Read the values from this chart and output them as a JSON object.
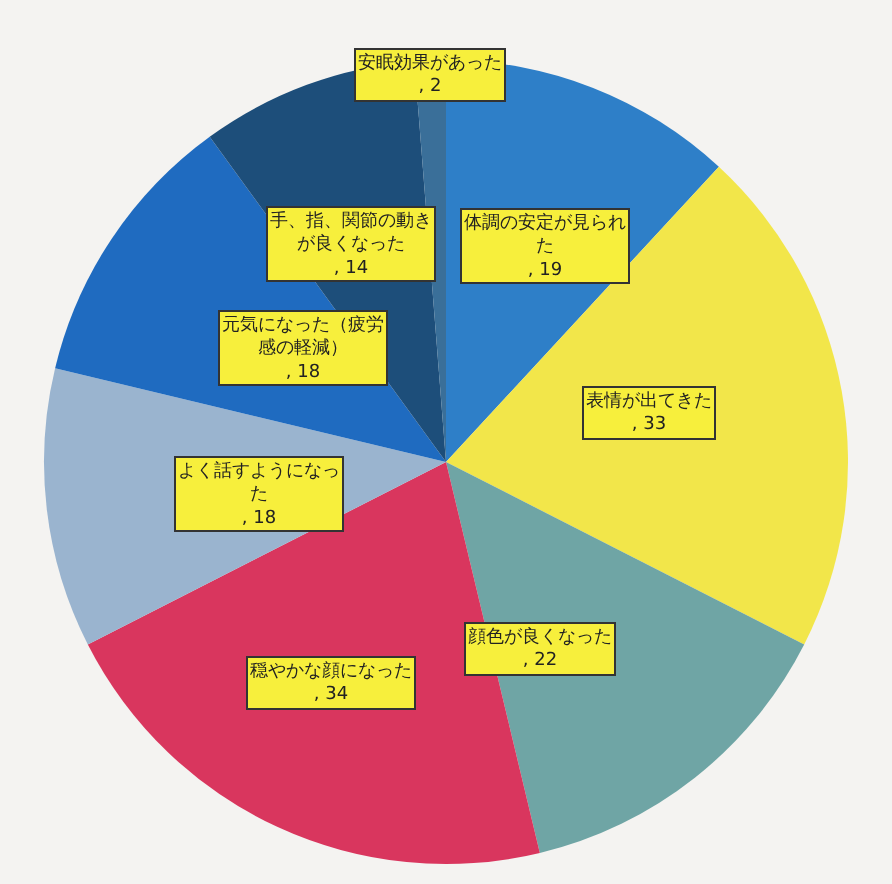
{
  "chart_data": {
    "type": "pie",
    "categories": [
      "体調の安定が見られた",
      "表情が出てきた",
      "顔色が良くなった",
      "穏やかな顔になった",
      "よく話すようになった",
      "元気になった（疲労感の軽減）",
      "手、指、関節の動きが良くなった",
      "安眠効果があった"
    ],
    "values": [
      19,
      33,
      22,
      34,
      18,
      18,
      14,
      2
    ],
    "colors": [
      "#2e7fc8",
      "#f2e64a",
      "#6fa5a5",
      "#d9365e",
      "#9ab4cf",
      "#1f6bc0",
      "#1d4e7a",
      "#3a6f99"
    ],
    "value_labels": [
      ", 19",
      ", 33",
      ", 22",
      ", 34",
      ", 18",
      ", 18",
      ", 14",
      ", 2"
    ],
    "legend": false
  }
}
